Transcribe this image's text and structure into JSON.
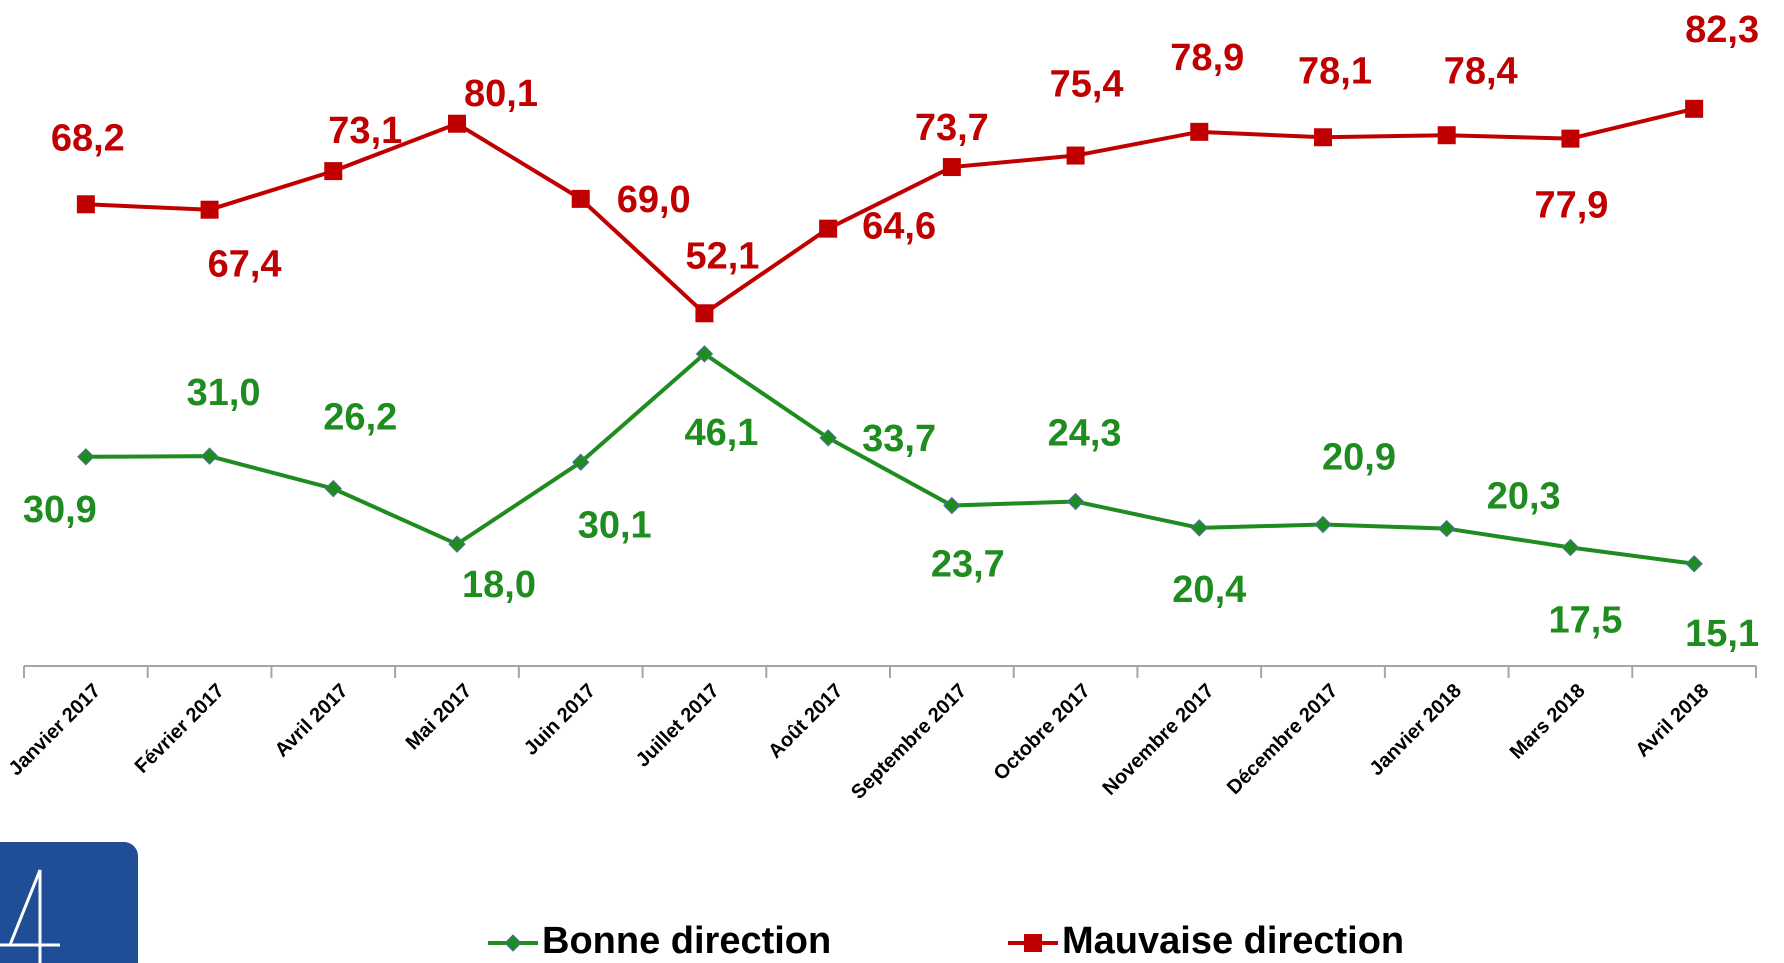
{
  "chart_data": {
    "type": "line",
    "categories": [
      "Janvier 2017",
      "Février 2017",
      "Avril 2017",
      "Mai 2017",
      "Juin 2017",
      "Juillet 2017",
      "Août 2017",
      "Septembre 2017",
      "Octobre 2017",
      "Novembre 2017",
      "Décembre 2017",
      "Janvier 2018",
      "Mars 2018",
      "Avril 2018"
    ],
    "series": [
      {
        "name": "Bonne direction",
        "color": "#1e8c1e",
        "marker": "diamond",
        "values": [
          30.9,
          31.0,
          26.2,
          18.0,
          30.1,
          46.1,
          33.7,
          23.7,
          24.3,
          20.4,
          20.9,
          20.3,
          17.5,
          15.1
        ],
        "value_labels": [
          "30,9",
          "31,0",
          "26,2",
          "18,0",
          "30,1",
          "46,1",
          "33,7",
          "23,7",
          "24,3",
          "20,4",
          "20,9",
          "20,3",
          "17,5",
          "15,1"
        ]
      },
      {
        "name": "Mauvaise direction",
        "color": "#c00000",
        "marker": "square",
        "values": [
          68.2,
          67.4,
          73.1,
          80.1,
          69.0,
          52.1,
          64.6,
          73.7,
          75.4,
          78.9,
          78.1,
          78.4,
          77.9,
          82.3
        ],
        "value_labels": [
          "68,2",
          "67,4",
          "73,1",
          "80,1",
          "69,0",
          "52,1",
          "64,6",
          "73,7",
          "75,4",
          "78,9",
          "78,1",
          "78,4",
          "77,9",
          "82,3"
        ]
      }
    ],
    "ylim": [
      0,
      100
    ],
    "grid": false,
    "legend": "bottom"
  }
}
